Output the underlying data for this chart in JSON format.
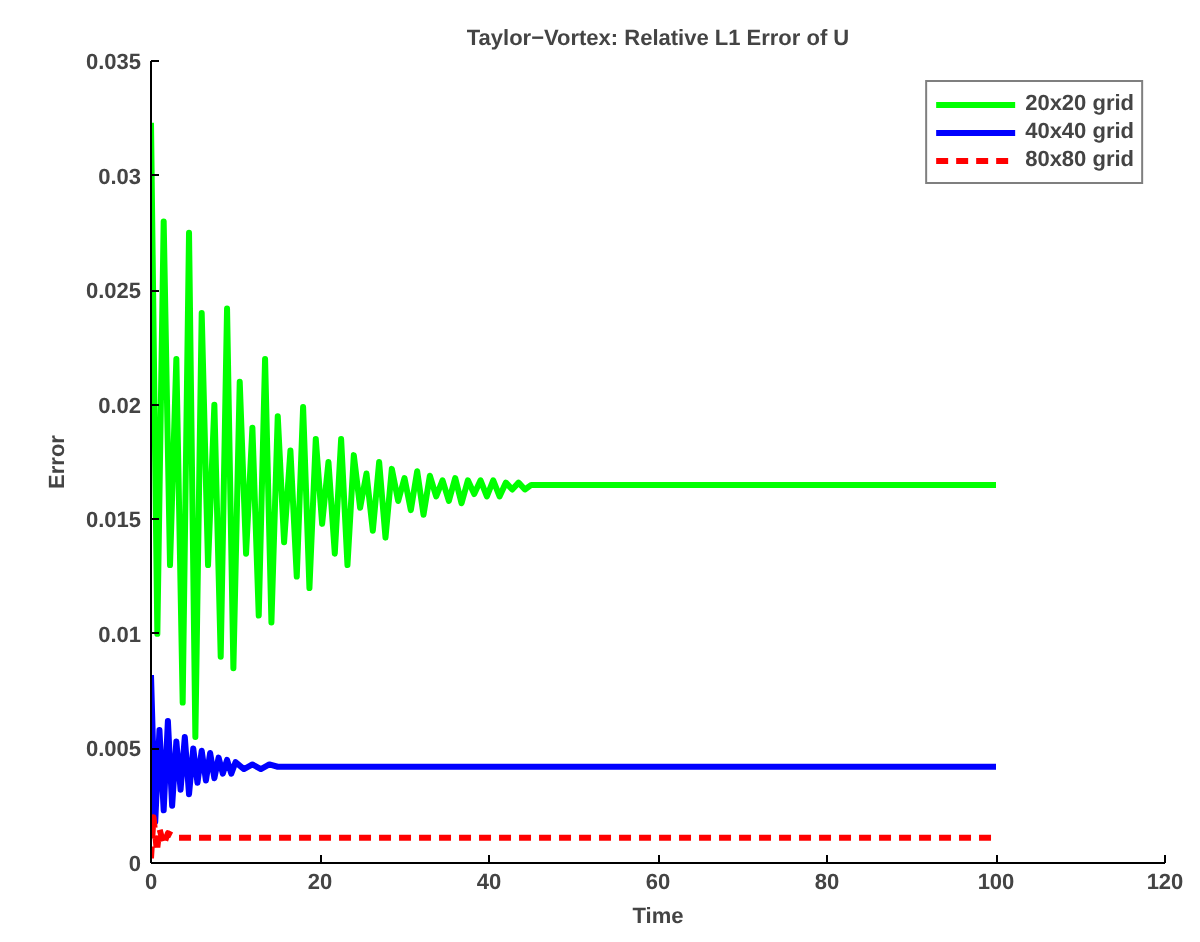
{
  "chart_data": {
    "type": "line",
    "title": "Taylor−Vortex: Relative L1 Error of U",
    "xlabel": "Time",
    "ylabel": "Error",
    "xlim": [
      0,
      120
    ],
    "xticks": [
      0,
      20,
      40,
      60,
      80,
      100,
      120
    ],
    "ylim": [
      0,
      0.035
    ],
    "yticks": [
      0,
      0.005,
      0.01,
      0.015,
      0.02,
      0.025,
      0.03,
      0.035
    ],
    "grid": false,
    "legend": "top right",
    "marker": "none",
    "series": [
      {
        "name": "20x20 grid",
        "color": "#00ff00",
        "line_style": "solid",
        "x": [
          0,
          0.75,
          1.5,
          2.25,
          3,
          3.75,
          4.5,
          5.25,
          6,
          6.75,
          7.5,
          8.25,
          9,
          9.75,
          10.5,
          11.25,
          12,
          12.75,
          13.5,
          14.25,
          15,
          15.75,
          16.5,
          17.25,
          18,
          18.75,
          19.5,
          20.25,
          21,
          21.75,
          22.5,
          23.25,
          24,
          24.75,
          25.5,
          26.25,
          27,
          27.75,
          28.5,
          29.25,
          30,
          30.75,
          31.5,
          32.25,
          33,
          33.75,
          34.5,
          35.25,
          36,
          36.75,
          37.5,
          38.25,
          39,
          39.75,
          40.5,
          41.25,
          42,
          42.75,
          43.5,
          44.25,
          45,
          100
        ],
        "values": [
          0.0323,
          0.01,
          0.028,
          0.013,
          0.022,
          0.007,
          0.0275,
          0.0055,
          0.024,
          0.013,
          0.02,
          0.009,
          0.0242,
          0.0085,
          0.021,
          0.0135,
          0.019,
          0.0108,
          0.022,
          0.0105,
          0.0195,
          0.014,
          0.018,
          0.0125,
          0.0199,
          0.012,
          0.0185,
          0.0148,
          0.0175,
          0.0135,
          0.0185,
          0.013,
          0.0178,
          0.0155,
          0.017,
          0.0145,
          0.0175,
          0.0142,
          0.0172,
          0.0158,
          0.0168,
          0.0154,
          0.0171,
          0.0152,
          0.0169,
          0.016,
          0.0167,
          0.0158,
          0.0168,
          0.0157,
          0.0167,
          0.0161,
          0.0167,
          0.016,
          0.0167,
          0.016,
          0.0166,
          0.0163,
          0.0166,
          0.0163,
          0.0165,
          0.0165
        ]
      },
      {
        "name": "40x40 grid",
        "color": "#0000ff",
        "line_style": "solid",
        "x": [
          0,
          0.5,
          1,
          1.5,
          2,
          2.5,
          3,
          3.5,
          4,
          4.5,
          5,
          5.5,
          6,
          6.5,
          7,
          7.5,
          8,
          8.5,
          9,
          9.5,
          10,
          11,
          12,
          13,
          14,
          15,
          100
        ],
        "values": [
          0.0082,
          0.0018,
          0.0058,
          0.0023,
          0.0062,
          0.0025,
          0.0053,
          0.0032,
          0.0055,
          0.003,
          0.005,
          0.0035,
          0.0049,
          0.0036,
          0.0048,
          0.0037,
          0.0046,
          0.0039,
          0.0045,
          0.0039,
          0.0044,
          0.0041,
          0.0043,
          0.0041,
          0.0043,
          0.0042,
          0.0042
        ]
      },
      {
        "name": "80x80 grid",
        "color": "#ff0000",
        "line_style": "dashed",
        "x": [
          0,
          0.3,
          0.7,
          1,
          1.5,
          2,
          3,
          100
        ],
        "values": [
          0.0002,
          0.002,
          0.0005,
          0.0015,
          0.0008,
          0.0013,
          0.0011,
          0.0011
        ]
      }
    ]
  }
}
